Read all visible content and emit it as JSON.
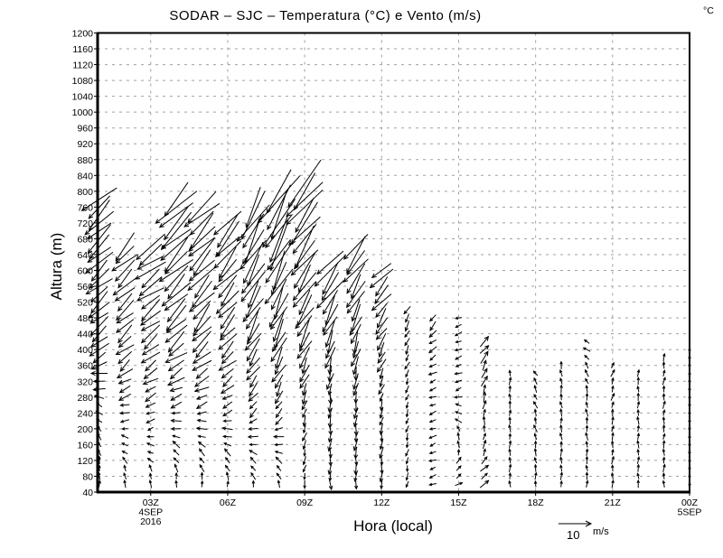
{
  "chart_data": {
    "type": "vector",
    "title": "SODAR – SJC – Temperatura (°C) e Vento (m/s)",
    "corner_label": "°C",
    "xlabel": "Hora (local)",
    "ylabel": "Altura (m)",
    "xlim_hours": [
      0.93,
      24
    ],
    "ylim": [
      40,
      1200
    ],
    "yticks": [
      40,
      80,
      120,
      160,
      200,
      240,
      280,
      320,
      360,
      400,
      440,
      480,
      520,
      560,
      600,
      640,
      680,
      720,
      760,
      800,
      840,
      880,
      920,
      960,
      1000,
      1040,
      1080,
      1120,
      1160,
      1200
    ],
    "xticks": [
      {
        "hour": 3,
        "label": "03Z",
        "sub1": "4SEP",
        "sub2": "2016"
      },
      {
        "hour": 6,
        "label": "06Z"
      },
      {
        "hour": 9,
        "label": "09Z"
      },
      {
        "hour": 12,
        "label": "12Z"
      },
      {
        "hour": 15,
        "label": "15Z"
      },
      {
        "hour": 18,
        "label": "18Z"
      },
      {
        "hour": 21,
        "label": "21Z"
      },
      {
        "hour": 24,
        "label": "00Z",
        "sub1": "5SEP"
      }
    ],
    "grid": true,
    "legend": {
      "position": "bottom-right",
      "ref_speed": "10",
      "unit": "m/s"
    },
    "level_start_m": 60,
    "level_step_m": 20,
    "profile_format": "[altitude_m, direction_toward_deg_ccw_from_east, speed_m_s]",
    "columns": [
      {
        "hour": 1,
        "top_m": 780,
        "profile": [
          [
            60,
            80,
            2
          ],
          [
            250,
            150,
            2
          ],
          [
            400,
            220,
            6
          ],
          [
            780,
            225,
            11
          ]
        ]
      },
      {
        "hour": 2,
        "top_m": 660,
        "profile": [
          [
            60,
            90,
            2
          ],
          [
            200,
            180,
            2
          ],
          [
            360,
            220,
            5
          ],
          [
            660,
            225,
            9
          ]
        ]
      },
      {
        "hour": 3,
        "top_m": 660,
        "profile": [
          [
            60,
            90,
            2
          ],
          [
            200,
            200,
            2
          ],
          [
            400,
            220,
            6
          ],
          [
            660,
            215,
            10
          ]
        ]
      },
      {
        "hour": 4,
        "top_m": 780,
        "profile": [
          [
            60,
            90,
            2
          ],
          [
            250,
            200,
            3
          ],
          [
            450,
            225,
            8
          ],
          [
            780,
            225,
            14
          ]
        ]
      },
      {
        "hour": 5,
        "top_m": 760,
        "profile": [
          [
            60,
            90,
            2
          ],
          [
            250,
            200,
            3
          ],
          [
            450,
            230,
            8
          ],
          [
            760,
            225,
            12
          ]
        ]
      },
      {
        "hour": 6,
        "top_m": 720,
        "profile": [
          [
            60,
            90,
            2
          ],
          [
            250,
            210,
            3
          ],
          [
            450,
            230,
            7
          ],
          [
            720,
            230,
            12
          ]
        ]
      },
      {
        "hour": 7,
        "top_m": 760,
        "profile": [
          [
            60,
            100,
            2
          ],
          [
            250,
            230,
            3
          ],
          [
            450,
            240,
            8
          ],
          [
            760,
            240,
            15
          ]
        ]
      },
      {
        "hour": 8,
        "top_m": 800,
        "profile": [
          [
            60,
            100,
            2
          ],
          [
            250,
            240,
            3
          ],
          [
            450,
            245,
            9
          ],
          [
            800,
            240,
            17
          ]
        ]
      },
      {
        "hour": 9,
        "top_m": 820,
        "profile": [
          [
            60,
            260,
            2
          ],
          [
            250,
            250,
            3
          ],
          [
            450,
            240,
            8
          ],
          [
            820,
            230,
            15
          ]
        ]
      },
      {
        "hour": 10,
        "top_m": 620,
        "profile": [
          [
            60,
            270,
            3
          ],
          [
            300,
            260,
            4
          ],
          [
            620,
            230,
            12
          ]
        ]
      },
      {
        "hour": 11,
        "top_m": 660,
        "profile": [
          [
            60,
            270,
            3
          ],
          [
            300,
            260,
            4
          ],
          [
            660,
            230,
            11
          ]
        ]
      },
      {
        "hour": 12,
        "top_m": 600,
        "profile": [
          [
            60,
            270,
            3
          ],
          [
            300,
            250,
            3
          ],
          [
            600,
            225,
            8
          ]
        ]
      },
      {
        "hour": 13,
        "top_m": 500,
        "profile": [
          [
            60,
            260,
            2
          ],
          [
            300,
            250,
            2
          ],
          [
            500,
            240,
            3
          ]
        ]
      },
      {
        "hour": 14,
        "top_m": 480,
        "profile": [
          [
            60,
            200,
            2
          ],
          [
            300,
            200,
            2
          ],
          [
            480,
            230,
            3
          ]
        ]
      },
      {
        "hour": 15,
        "top_m": 480,
        "profile": [
          [
            60,
            20,
            2
          ],
          [
            300,
            200,
            2
          ],
          [
            480,
            200,
            2
          ]
        ]
      },
      {
        "hour": 16,
        "top_m": 420,
        "profile": [
          [
            60,
            30,
            3
          ],
          [
            200,
            90,
            2
          ],
          [
            420,
            50,
            4
          ]
        ]
      },
      {
        "hour": 17,
        "top_m": 340,
        "profile": [
          [
            60,
            90,
            2
          ],
          [
            340,
            90,
            2
          ]
        ]
      },
      {
        "hour": 18,
        "top_m": 340,
        "profile": [
          [
            60,
            90,
            2
          ],
          [
            340,
            120,
            2
          ]
        ]
      },
      {
        "hour": 19,
        "top_m": 360,
        "profile": [
          [
            60,
            90,
            2
          ],
          [
            360,
            100,
            2
          ]
        ]
      },
      {
        "hour": 20,
        "top_m": 420,
        "profile": [
          [
            60,
            90,
            2
          ],
          [
            300,
            100,
            2
          ],
          [
            420,
            150,
            2
          ]
        ]
      },
      {
        "hour": 21,
        "top_m": 360,
        "profile": [
          [
            60,
            90,
            2
          ],
          [
            360,
            70,
            2
          ]
        ]
      },
      {
        "hour": 22,
        "top_m": 340,
        "profile": [
          [
            60,
            90,
            2
          ],
          [
            340,
            90,
            2
          ]
        ]
      },
      {
        "hour": 23,
        "top_m": 380,
        "profile": [
          [
            60,
            90,
            2
          ],
          [
            380,
            80,
            2
          ]
        ]
      },
      {
        "hour": 24,
        "top_m": 400,
        "profile": [
          [
            60,
            90,
            1
          ],
          [
            400,
            90,
            1
          ]
        ]
      }
    ]
  }
}
